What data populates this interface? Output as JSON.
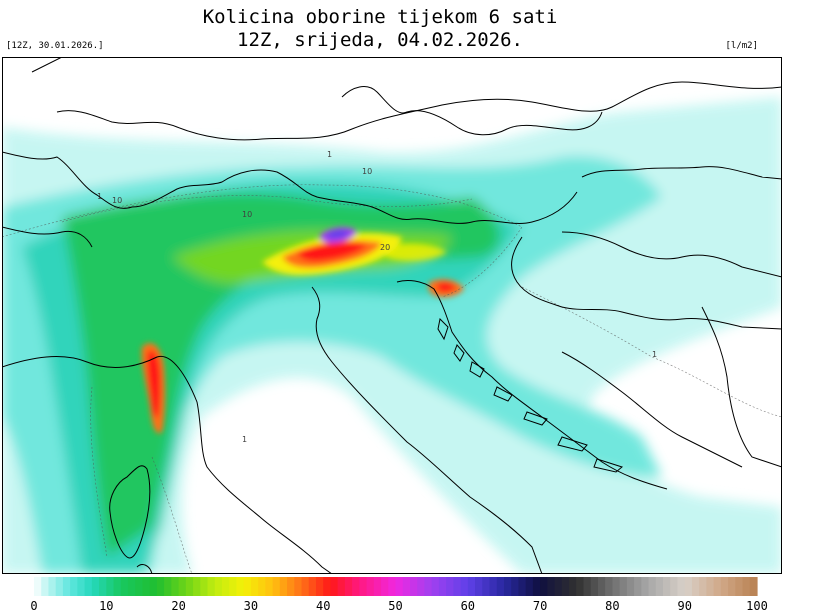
{
  "title": {
    "line1": "Kolicina oborine tijekom 6 sati",
    "line2": "12Z, srijeda, 04.02.2026."
  },
  "run_label": "[12Z, 30.01.2026.]",
  "unit_label": "[l/m2]",
  "colorbar": {
    "ticks": [
      "0",
      "10",
      "20",
      "30",
      "40",
      "50",
      "60",
      "70",
      "80",
      "90",
      "100"
    ],
    "min": 0,
    "max": 100,
    "stops": [
      {
        "v": 0,
        "c": "#ffffff"
      },
      {
        "v": 2,
        "c": "#b8f4f0"
      },
      {
        "v": 5,
        "c": "#5ee6de"
      },
      {
        "v": 8,
        "c": "#26d8bc"
      },
      {
        "v": 12,
        "c": "#18c860"
      },
      {
        "v": 17,
        "c": "#20be30"
      },
      {
        "v": 21,
        "c": "#6cd418"
      },
      {
        "v": 25,
        "c": "#c0ec10"
      },
      {
        "v": 29,
        "c": "#f4f008"
      },
      {
        "v": 33,
        "c": "#ffc010"
      },
      {
        "v": 37,
        "c": "#ff7018"
      },
      {
        "v": 41,
        "c": "#ff1818"
      },
      {
        "v": 45,
        "c": "#ff1880"
      },
      {
        "v": 50,
        "c": "#f028e0"
      },
      {
        "v": 55,
        "c": "#a040f0"
      },
      {
        "v": 60,
        "c": "#6040e8"
      },
      {
        "v": 65,
        "c": "#2828a0"
      },
      {
        "v": 70,
        "c": "#101040"
      },
      {
        "v": 75,
        "c": "#303030"
      },
      {
        "v": 80,
        "c": "#707070"
      },
      {
        "v": 85,
        "c": "#a8a8a8"
      },
      {
        "v": 90,
        "c": "#d8d0c8"
      },
      {
        "v": 95,
        "c": "#d0a888"
      },
      {
        "v": 100,
        "c": "#b88050"
      }
    ]
  },
  "contour_labels": [
    "1",
    "10",
    "1",
    "10",
    "1",
    "20",
    "10",
    "1"
  ]
}
